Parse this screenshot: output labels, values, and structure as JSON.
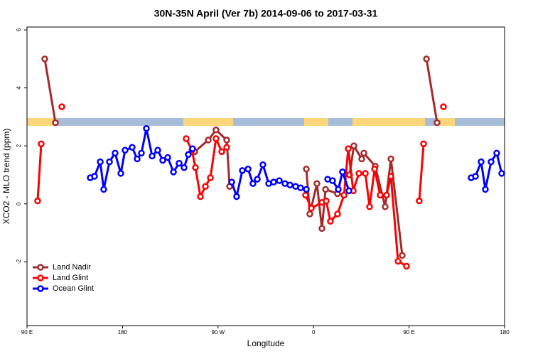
{
  "chart_data": {
    "type": "line",
    "title": "30N-35N April (Ver 7b)   2014-09-06 to 2017-03-31",
    "x_label": "Longitude",
    "y_label": "XCO2 - MLO trend (ppm)",
    "xlim": [
      90,
      540
    ],
    "xticks": [
      {
        "value": 90,
        "label": "90 E"
      },
      180,
      {
        "value": 270,
        "label": "90 W"
      },
      {
        "value": 360,
        "label": "0"
      },
      {
        "value": 450,
        "label": "90 E"
      },
      {
        "value": 540,
        "label": "180"
      }
    ],
    "ylim": [
      -4.2,
      6.1
    ],
    "yticks": [
      -2,
      0,
      2,
      4,
      6
    ],
    "legend": "bottom-left",
    "series": [
      {
        "name": "Land Nadir",
        "color": "#a52a2a",
        "x": [
          106.7,
          116.8,
          null,
          248.0,
          260.8,
          268.1,
          278.2,
          280.9,
          null,
          353.2,
          356.5,
          363.2,
          367.9,
          371.3,
          382.6,
          387.3,
          394.0,
          398.0,
          405.4,
          407.4,
          418.1,
          427.5,
          432.9,
          443.6,
          null,
          466.4,
          476.4
        ],
        "values": [
          5.0,
          2.8,
          null,
          1.8,
          2.2,
          2.55,
          2.2,
          0.6,
          null,
          1.2,
          -0.35,
          0.7,
          -0.85,
          0.5,
          0.35,
          1.1,
          1.0,
          2.0,
          1.55,
          1.75,
          1.3,
          -0.1,
          1.55,
          -1.78,
          null,
          5.0,
          2.8
        ]
      },
      {
        "name": "Land Glint",
        "color": "#ff0000",
        "x": [
          100.0,
          103.4,
          null,
          122.8,
          null,
          240.0,
          245.4,
          248.7,
          253.4,
          258.1,
          262.8,
          268.1,
          273.5,
          278.2,
          null,
          352.5,
          357.9,
          367.9,
          371.9,
          375.9,
          382.6,
          388.7,
          392.7,
          397.4,
          402.7,
          408.8,
          412.8,
          417.5,
          422.8,
          428.8,
          432.9,
          439.6,
          447.6,
          null,
          459.6,
          463.7,
          null,
          482.4
        ],
        "values": [
          0.1,
          2.07,
          null,
          3.35,
          null,
          2.25,
          1.85,
          1.25,
          0.25,
          0.6,
          0.9,
          2.25,
          1.8,
          1.95,
          null,
          0.3,
          -0.15,
          0.05,
          0.1,
          -0.6,
          -0.35,
          0.3,
          1.9,
          0.45,
          1.05,
          1.05,
          -0.1,
          1.2,
          0.3,
          0.3,
          0.95,
          -1.98,
          -2.15,
          null,
          0.1,
          2.07,
          null,
          3.35
        ]
      },
      {
        "name": "Ocean Glint",
        "color": "#0000ff",
        "x": [
          149.6,
          153.6,
          159.0,
          162.3,
          167.7,
          173.0,
          178.4,
          182.4,
          189.1,
          193.8,
          197.8,
          202.5,
          207.9,
          213.2,
          217.9,
          222.6,
          228.0,
          233.3,
          238.0,
          242.0,
          246.0,
          null,
          282.9,
          287.5,
          292.9,
          298.3,
          302.9,
          307.0,
          312.3,
          317.7,
          322.4,
          327.7,
          333.1,
          337.8,
          343.1,
          347.8,
          353.2,
          null,
          373.3,
          377.9,
          383.3,
          387.3,
          393.4,
          null,
          508.5,
          512.6,
          517.9,
          521.9,
          527.3,
          532.6,
          537.3
        ],
        "values": [
          0.9,
          0.95,
          1.45,
          0.5,
          1.45,
          1.75,
          1.05,
          1.85,
          1.95,
          1.55,
          1.75,
          2.6,
          1.65,
          1.85,
          1.5,
          1.6,
          1.1,
          1.4,
          1.25,
          1.7,
          1.9,
          null,
          0.75,
          0.25,
          1.15,
          1.2,
          0.7,
          0.85,
          1.35,
          0.7,
          0.75,
          0.8,
          0.7,
          0.65,
          0.6,
          0.55,
          0.5,
          null,
          0.85,
          0.8,
          0.5,
          1.1,
          0.45,
          null,
          0.9,
          0.95,
          1.45,
          0.5,
          1.45,
          1.75,
          1.05
        ]
      }
    ]
  }
}
